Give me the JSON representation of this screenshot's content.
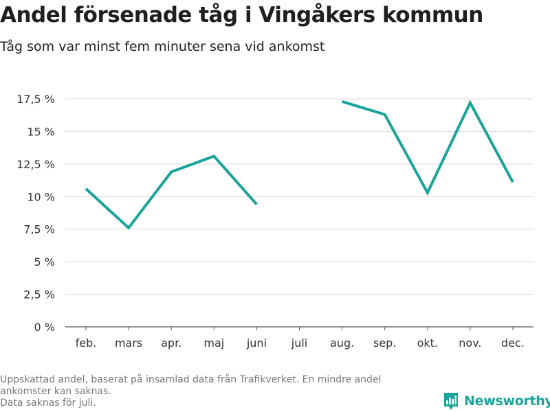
{
  "header": {
    "title": "Andel försenade tåg i Vingåkers kommun",
    "subtitle": "Tåg som var minst fem minuter sena vid ankomst"
  },
  "chart_data": {
    "type": "line",
    "title": "Andel försenade tåg i Vingåkers kommun",
    "subtitle": "Tåg som var minst fem minuter sena vid ankomst",
    "xlabel": "",
    "ylabel": "",
    "categories": [
      "feb.",
      "mars",
      "apr.",
      "maj",
      "juni",
      "juli",
      "aug.",
      "sep.",
      "okt.",
      "nov.",
      "dec."
    ],
    "series": [
      {
        "values": [
          10.6,
          7.6,
          11.9,
          13.1,
          9.4,
          null,
          17.3,
          16.3,
          10.3,
          17.2,
          11.1
        ],
        "color": "#1aa39a"
      }
    ],
    "ylim": [
      0,
      17.5
    ],
    "yticks": [
      0,
      2.5,
      5,
      7.5,
      10,
      12.5,
      15,
      17.5
    ],
    "ytick_labels": [
      "0 %",
      "2,5 %",
      "5 %",
      "7,5 %",
      "10 %",
      "12,5 %",
      "15 %",
      "17,5 %"
    ],
    "grid": true,
    "legend": "none"
  },
  "footer": {
    "note_line1": "Uppskattad andel, baserat på insamlad data från Trafikverket. En mindre andel ankomster kan saknas.",
    "note_line2": "Data saknas för juli.",
    "brand": "Newsworthy",
    "brand_color": "#1aa39a",
    "brand_icon": "bar-chart-logo-icon"
  }
}
